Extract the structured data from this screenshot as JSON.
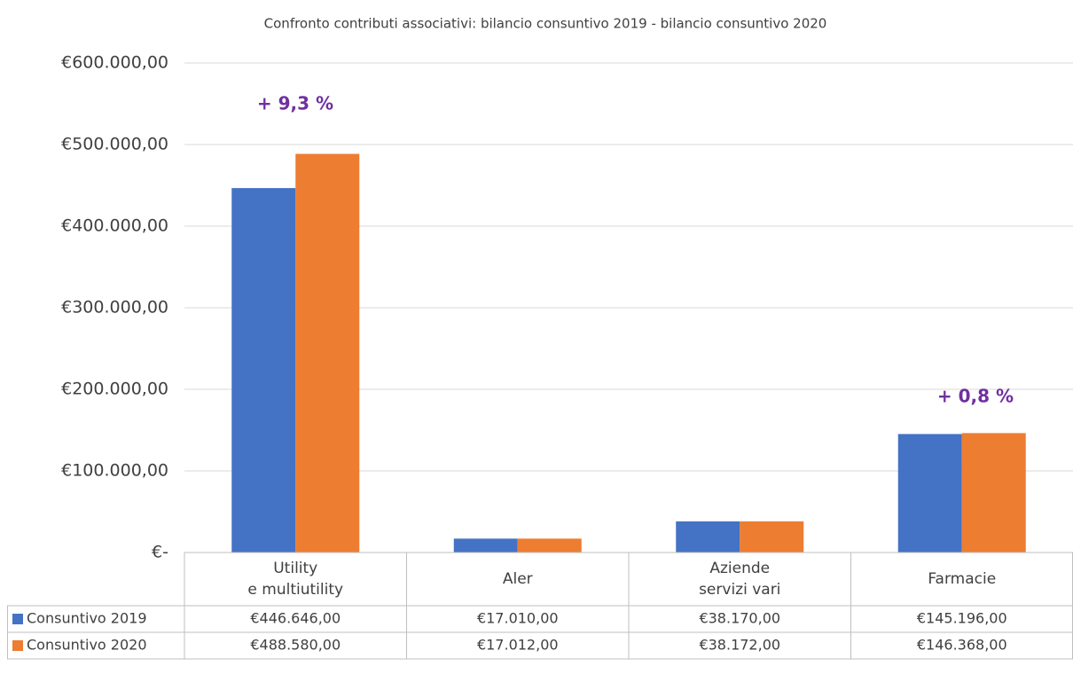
{
  "chart_data": {
    "type": "bar",
    "title": "Confronto contributi associativi: bilancio consuntivo 2019 - bilancio consuntivo 2020",
    "categories": [
      [
        "Utility",
        "e multiutility"
      ],
      [
        "Aler"
      ],
      [
        "Aziende",
        "servizi vari"
      ],
      [
        "Farmacie"
      ]
    ],
    "series": [
      {
        "name": "Consuntivo 2019",
        "color": "#4472c4",
        "values": [
          446646,
          17010,
          38170,
          145196
        ],
        "value_labels": [
          "€446.646,00",
          "€17.010,00",
          "€38.170,00",
          "€145.196,00"
        ]
      },
      {
        "name": "Consuntivo 2020",
        "color": "#ed7d31",
        "values": [
          488580,
          17012,
          38172,
          146368
        ],
        "value_labels": [
          "€488.580,00",
          "€17.012,00",
          "€38.172,00",
          "€146.368,00"
        ]
      }
    ],
    "ylim": [
      0,
      600000
    ],
    "yticks": [
      {
        "value": 0,
        "label": "€-"
      },
      {
        "value": 100000,
        "label": "€100.000,00"
      },
      {
        "value": 200000,
        "label": "€200.000,00"
      },
      {
        "value": 300000,
        "label": "€300.000,00"
      },
      {
        "value": 400000,
        "label": "€400.000,00"
      },
      {
        "value": 500000,
        "label": "€500.000,00"
      },
      {
        "value": 600000,
        "label": "€600.000,00"
      }
    ],
    "grid": true,
    "annotations": [
      "+ 9,3 %",
      "+ 0,8 %"
    ]
  }
}
